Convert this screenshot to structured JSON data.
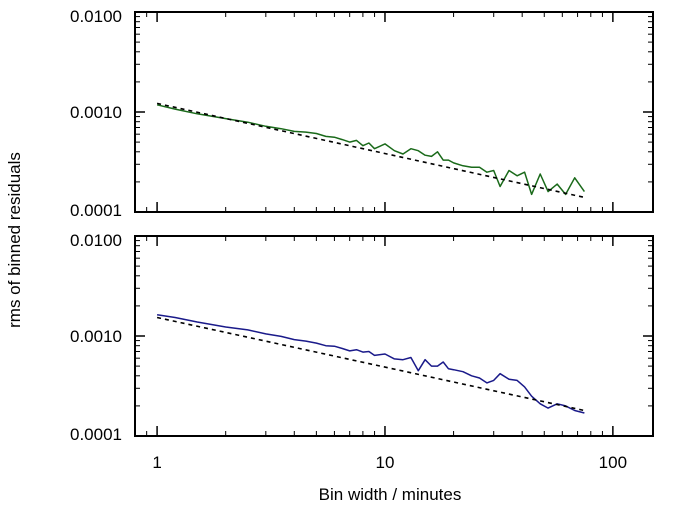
{
  "chart_data": [
    {
      "type": "line",
      "title": "",
      "xscale": "log",
      "yscale": "log",
      "xlim": [
        0.8,
        150
      ],
      "ylim": [
        0.0001,
        0.01
      ],
      "y_ticks": [
        "0.0001",
        "0.0010",
        "0.0100"
      ],
      "x_ticks": [],
      "series": [
        {
          "color": "#1a6a1a",
          "style": "solid",
          "x": [
            1.0,
            1.2,
            1.5,
            2.0,
            2.5,
            3.0,
            3.5,
            4.0,
            4.5,
            5.0,
            5.5,
            6.0,
            6.5,
            7.0,
            7.5,
            8.0,
            8.5,
            9.0,
            10.0,
            11.0,
            12.0,
            13.0,
            14.0,
            15.0,
            16.0,
            17.0,
            18.0,
            19.0,
            20.0,
            22.0,
            24.0,
            26.0,
            28.0,
            30.0,
            32.0,
            35.0,
            38.0,
            41.0,
            44.0,
            48.0,
            52.0,
            57.0,
            62.0,
            68.0,
            75.0
          ],
          "y": [
            0.00118,
            0.00107,
            0.00096,
            0.00086,
            0.00079,
            0.00072,
            0.00068,
            0.00064,
            0.00063,
            0.00061,
            0.00057,
            0.00056,
            0.00053,
            0.0005,
            0.00052,
            0.00046,
            0.00049,
            0.00043,
            0.00048,
            0.00041,
            0.00038,
            0.00043,
            0.00041,
            0.00037,
            0.00036,
            0.0004,
            0.00033,
            0.00033,
            0.00031,
            0.00029,
            0.00028,
            0.00028,
            0.00025,
            0.00026,
            0.00018,
            0.00026,
            0.00023,
            0.00025,
            0.00015,
            0.00024,
            0.00016,
            0.00019,
            0.00015,
            0.00022,
            0.00016
          ]
        },
        {
          "color": "#000000",
          "style": "dashed",
          "x": [
            1.0,
            75.0
          ],
          "y": [
            0.00122,
            0.00014
          ]
        }
      ]
    },
    {
      "type": "line",
      "title": "",
      "xscale": "log",
      "yscale": "log",
      "xlim": [
        0.8,
        150
      ],
      "ylim": [
        0.0001,
        0.01
      ],
      "xlabel": "Bin width / minutes",
      "y_ticks": [
        "0.0001",
        "0.0010",
        "0.0100"
      ],
      "x_ticks": [
        "1",
        "10",
        "100"
      ],
      "series": [
        {
          "color": "#1a1a8a",
          "style": "solid",
          "x": [
            1.0,
            1.2,
            1.5,
            2.0,
            2.5,
            3.0,
            3.5,
            4.0,
            4.5,
            5.0,
            5.5,
            6.0,
            6.5,
            7.0,
            7.5,
            8.0,
            8.5,
            9.0,
            10.0,
            11.0,
            12.0,
            13.0,
            14.0,
            15.0,
            16.0,
            17.0,
            18.0,
            19.0,
            20.0,
            22.0,
            24.0,
            26.0,
            28.0,
            30.0,
            32.0,
            35.0,
            38.0,
            41.0,
            44.0,
            48.0,
            52.0,
            57.0,
            62.0,
            68.0,
            75.0
          ],
          "y": [
            0.00163,
            0.00153,
            0.00138,
            0.00123,
            0.00115,
            0.00105,
            0.00099,
            0.00092,
            0.00089,
            0.00085,
            0.0008,
            0.00079,
            0.00075,
            0.00071,
            0.00073,
            0.00069,
            0.0007,
            0.00064,
            0.00066,
            0.00059,
            0.00058,
            0.00061,
            0.00045,
            0.00058,
            0.0005,
            0.0005,
            0.00055,
            0.00047,
            0.00046,
            0.00044,
            0.0004,
            0.00038,
            0.00034,
            0.00036,
            0.00042,
            0.00037,
            0.00036,
            0.00031,
            0.00025,
            0.00021,
            0.00019,
            0.00021,
            0.0002,
            0.00018,
            0.00017
          ]
        },
        {
          "color": "#000000",
          "style": "dashed",
          "x": [
            1.0,
            75.0
          ],
          "y": [
            0.00153,
            0.00018
          ]
        }
      ]
    }
  ],
  "shared_ylabel": "rms of binned residuals"
}
